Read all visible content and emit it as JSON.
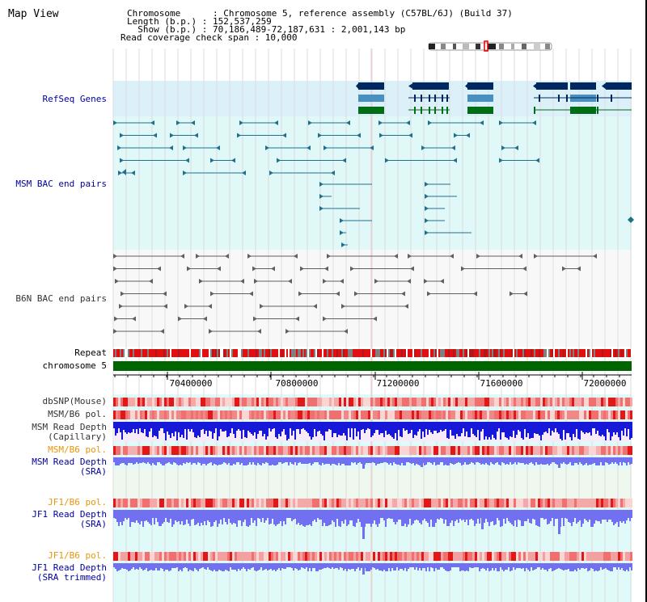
{
  "header": {
    "title": "Map View",
    "info_lines": [
      "Chromosome      : Chromosome 5, reference assembly (C57BL/6J) (Build 37)",
      "Length (b.p.) : 152,537,259",
      "  Show (b.p.) : 70,186,489-72,187,631 : 2,001,143 bp",
      "Read coverage check span : 10,000"
    ]
  },
  "tracks": {
    "refseq": "RefSeq Genes",
    "msm_bac": "MSM BAC end pairs",
    "b6n_bac": "B6N BAC end pairs",
    "repeat": "Repeat",
    "chromosome": "chromosome 5",
    "dbsnp": "dbSNP(Mouse)",
    "msm_b6_pol_1": "MSM/B6 pol.",
    "msm_depth_cap_1": "MSM Read Depth",
    "msm_depth_cap_2": "(Capillary)",
    "msm_b6_pol_2": "MSM/B6 pol.",
    "msm_depth_sra_1": "MSM Read Depth",
    "msm_depth_sra_2": "(SRA)",
    "jf1_b6_pol_1": "JF1/B6 pol.",
    "jf1_depth_sra_1": "JF1 Read Depth",
    "jf1_depth_sra_2": "(SRA)",
    "jf1_b6_pol_2": "JF1/B6 pol.",
    "jf1_depth_trim_1": "JF1 Read Depth",
    "jf1_depth_trim_2": "(SRA trimmed)"
  },
  "axis": {
    "ticks": [
      "70400000",
      "70800000",
      "71200000",
      "71600000",
      "72000000"
    ]
  },
  "colors": {
    "refseq_bg": "#dcf0fa",
    "msm_bac_bg": "#e0f8f8",
    "b6n_bac_bg": "#f8f8f8",
    "lower_bg": "#e0fafa",
    "gene_navy": "#002860",
    "gene_steel": "#4890c0",
    "gene_green": "#006e14",
    "msm_line": "#20708c",
    "b6n_line": "#606060",
    "chromosome_bar": "#006400",
    "depth_blue": "#1818d8",
    "depth_light": "#7070f0"
  }
}
